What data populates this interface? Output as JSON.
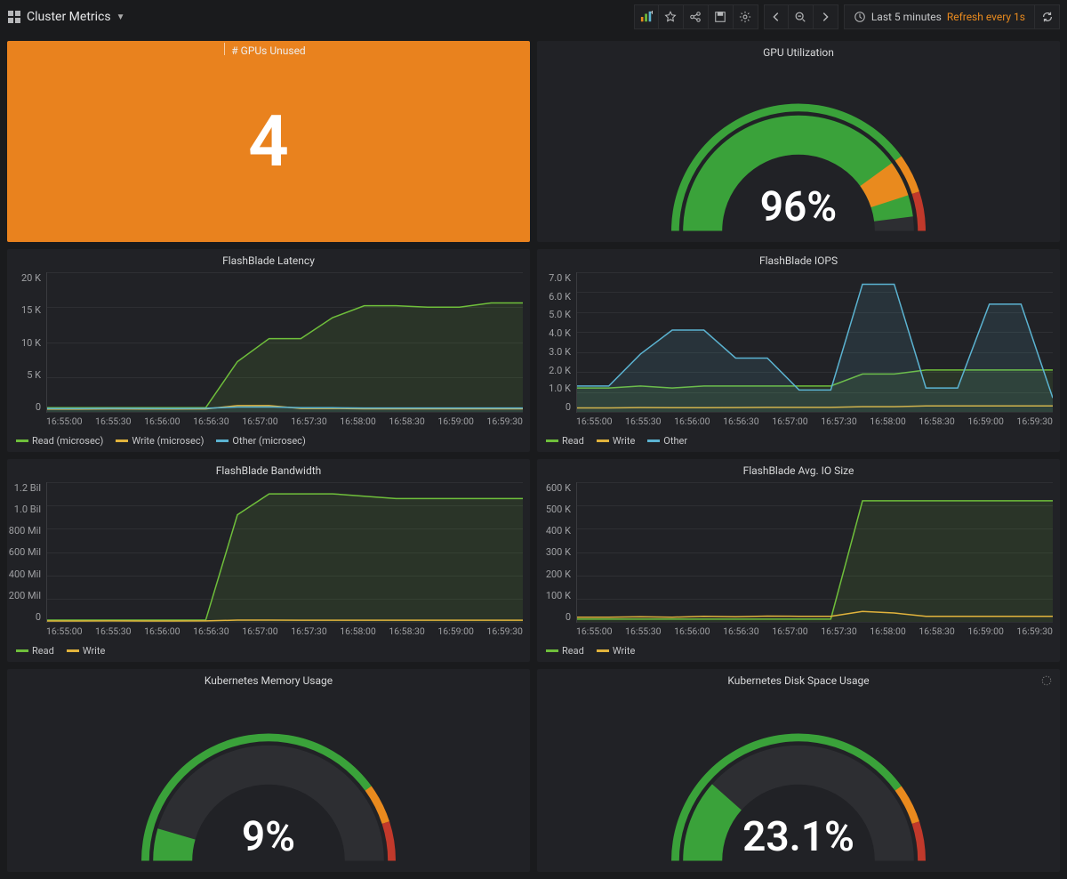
{
  "topbar": {
    "title": "Cluster Metrics",
    "timerange_label": "Last 5 minutes",
    "refresh_label": "Refresh every 1s"
  },
  "colors": {
    "panel_bg": "#212226",
    "grid": "#2e2f33",
    "axis": "#3a3b3f",
    "text": "#d8d9da",
    "series_green": "#6fbf3b",
    "series_yellow": "#e1b33c",
    "series_blue": "#5bb3d1",
    "gauge_green": "#3aa23a",
    "gauge_orange": "#e98a1e",
    "gauge_red": "#c1392b",
    "gauge_track": "#2d2e32",
    "bigstat_bg": "#e9821e"
  },
  "panels": {
    "gpus_unused": {
      "title": "# GPUs Unused",
      "value": "4"
    },
    "gpu_util": {
      "title": "GPU Utilization",
      "value": "96%",
      "percent": 96,
      "thresholds": {
        "warn_start": 80,
        "crit_start": 90
      }
    },
    "latency": {
      "title": "FlashBlade Latency",
      "ylabels": [
        "20 K",
        "15 K",
        "10 K",
        "5 K",
        "0"
      ],
      "ymax": 20000,
      "xlabels": [
        "16:55:00",
        "16:55:30",
        "16:56:00",
        "16:56:30",
        "16:57:00",
        "16:57:30",
        "16:58:00",
        "16:58:30",
        "16:59:00",
        "16:59:30"
      ],
      "legend": [
        {
          "label": "Read (microsec)",
          "color": "#6fbf3b"
        },
        {
          "label": "Write (microsec)",
          "color": "#e1b33c"
        },
        {
          "label": "Other (microsec)",
          "color": "#5bb3d1"
        }
      ],
      "series": {
        "read": [
          600,
          600,
          600,
          600,
          600,
          600,
          7200,
          10500,
          10500,
          13500,
          15200,
          15200,
          15000,
          15000,
          15600,
          15600
        ],
        "write": [
          400,
          400,
          430,
          420,
          410,
          430,
          900,
          900,
          500,
          500,
          450,
          450,
          450,
          450,
          450,
          450
        ],
        "other": [
          500,
          500,
          520,
          510,
          500,
          520,
          700,
          720,
          600,
          600,
          550,
          550,
          560,
          560,
          560,
          560
        ]
      }
    },
    "iops": {
      "title": "FlashBlade IOPS",
      "ylabels": [
        "7.0 K",
        "6.0 K",
        "5.0 K",
        "4.0 K",
        "3.0 K",
        "2.0 K",
        "1.0 K",
        "0"
      ],
      "ymax": 7000,
      "xlabels": [
        "16:55:00",
        "16:55:30",
        "16:56:00",
        "16:56:30",
        "16:57:00",
        "16:57:30",
        "16:58:00",
        "16:58:30",
        "16:59:00",
        "16:59:30"
      ],
      "legend": [
        {
          "label": "Read",
          "color": "#6fbf3b"
        },
        {
          "label": "Write",
          "color": "#e1b33c"
        },
        {
          "label": "Other",
          "color": "#5bb3d1"
        }
      ],
      "series": {
        "read": [
          1200,
          1200,
          1300,
          1200,
          1300,
          1300,
          1300,
          1300,
          1300,
          1900,
          1900,
          2100,
          2100,
          2100,
          2100,
          2100
        ],
        "write": [
          200,
          200,
          220,
          210,
          210,
          220,
          230,
          230,
          230,
          260,
          260,
          300,
          300,
          300,
          300,
          300
        ],
        "other": [
          1300,
          1300,
          2900,
          4100,
          4100,
          2700,
          2700,
          1100,
          1100,
          6400,
          6400,
          1200,
          1200,
          5400,
          5400,
          700
        ]
      }
    },
    "bandwidth": {
      "title": "FlashBlade Bandwidth",
      "ylabels": [
        "1.2 Bil",
        "1.0 Bil",
        "800 Mil",
        "600 Mil",
        "400 Mil",
        "200 Mil",
        "0"
      ],
      "ymax": 1200,
      "xlabels": [
        "16:55:00",
        "16:55:30",
        "16:56:00",
        "16:56:30",
        "16:57:00",
        "16:57:30",
        "16:58:00",
        "16:58:30",
        "16:59:00",
        "16:59:30"
      ],
      "legend": [
        {
          "label": "Read",
          "color": "#6fbf3b"
        },
        {
          "label": "Write",
          "color": "#e1b33c"
        }
      ],
      "series": {
        "read": [
          15,
          15,
          15,
          15,
          15,
          15,
          920,
          1100,
          1100,
          1100,
          1080,
          1060,
          1060,
          1060,
          1060,
          1060
        ],
        "write": [
          8,
          8,
          9,
          8,
          8,
          9,
          15,
          15,
          14,
          14,
          14,
          14,
          14,
          14,
          14,
          14
        ]
      }
    },
    "iosize": {
      "title": "FlashBlade Avg. IO Size",
      "ylabels": [
        "600 K",
        "500 K",
        "400 K",
        "300 K",
        "200 K",
        "100 K",
        "0"
      ],
      "ymax": 600,
      "xlabels": [
        "16:55:00",
        "16:55:30",
        "16:56:00",
        "16:56:30",
        "16:57:00",
        "16:57:30",
        "16:58:00",
        "16:58:30",
        "16:59:00",
        "16:59:30"
      ],
      "legend": [
        {
          "label": "Read",
          "color": "#6fbf3b"
        },
        {
          "label": "Write",
          "color": "#e1b33c"
        }
      ],
      "series": {
        "read": [
          12,
          12,
          12,
          12,
          12,
          12,
          12,
          12,
          12,
          520,
          520,
          520,
          520,
          520,
          520,
          520
        ],
        "write": [
          20,
          20,
          22,
          20,
          24,
          22,
          25,
          24,
          24,
          45,
          38,
          24,
          24,
          24,
          24,
          24
        ]
      }
    },
    "k8s_mem": {
      "title": "Kubernetes Memory Usage",
      "value": "9%",
      "percent": 9
    },
    "k8s_disk": {
      "title": "Kubernetes Disk Space Usage",
      "value": "23.1%",
      "percent": 23.1
    }
  }
}
